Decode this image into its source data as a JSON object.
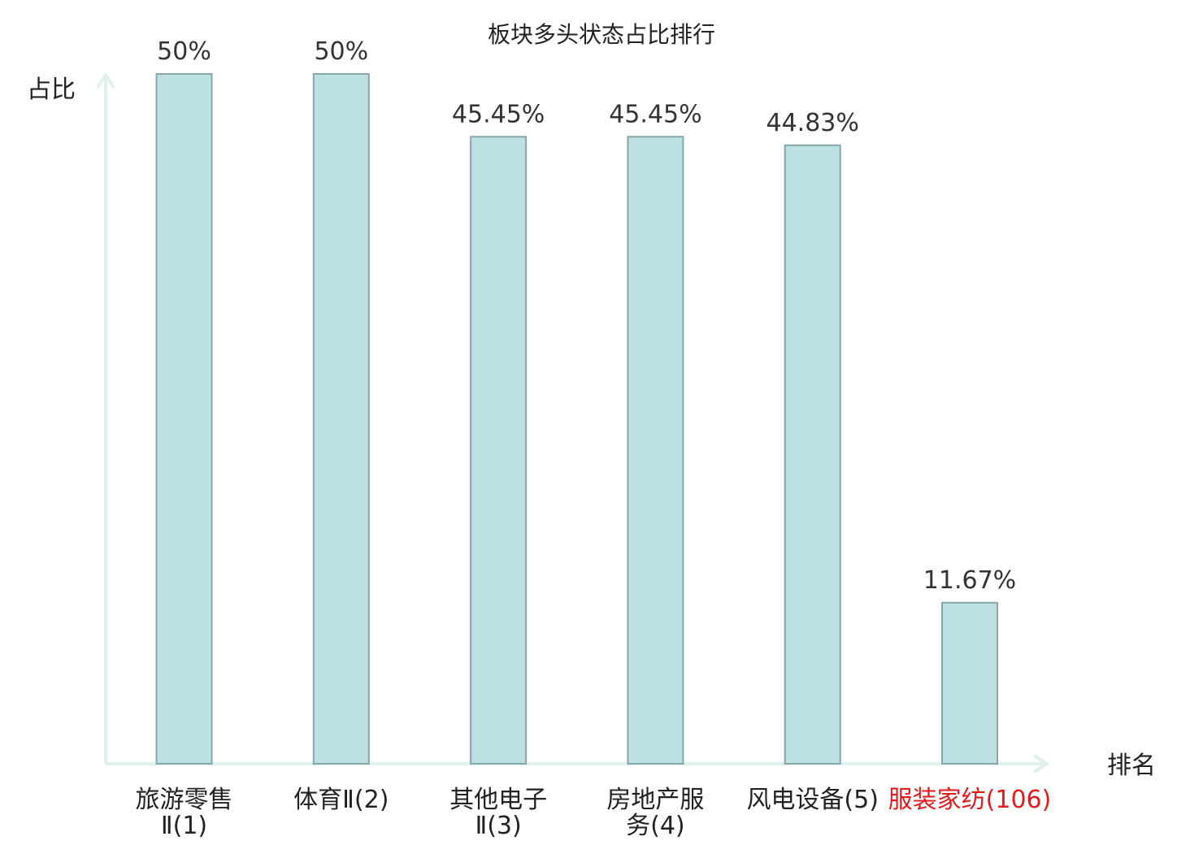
{
  "colors": {
    "bar_fill": "#bde0e3",
    "bar_stroke": "#86a7aa",
    "axis": "#dff0ef",
    "highlight_label": "#e31a1c",
    "text": "#333333"
  },
  "chart_data": {
    "type": "bar",
    "title": "板块多头状态占比排行",
    "xlabel": "排名",
    "ylabel": "占比",
    "ylim": [
      0,
      50
    ],
    "grid": false,
    "legend": "none",
    "categories": [
      "旅游零售Ⅱ(1)",
      "体育Ⅱ(2)",
      "其他电子Ⅱ(3)",
      "房地产服务(4)",
      "风电设备(5)",
      "服装家纺(106)"
    ],
    "tick_label_lines": [
      [
        "旅游零售",
        "Ⅱ(1)"
      ],
      [
        "体育Ⅱ(2)"
      ],
      [
        "其他电子",
        "Ⅱ(3)"
      ],
      [
        "房地产服",
        "务(4)"
      ],
      [
        "风电设备(5)"
      ],
      [
        "服装家纺(106)"
      ]
    ],
    "highlighted": [
      false,
      false,
      false,
      false,
      false,
      true
    ],
    "values": [
      50,
      50,
      45.45,
      45.45,
      44.83,
      11.67
    ],
    "data_labels": [
      "50%",
      "50%",
      "45.45%",
      "45.45%",
      "44.83%",
      "11.67%"
    ]
  }
}
